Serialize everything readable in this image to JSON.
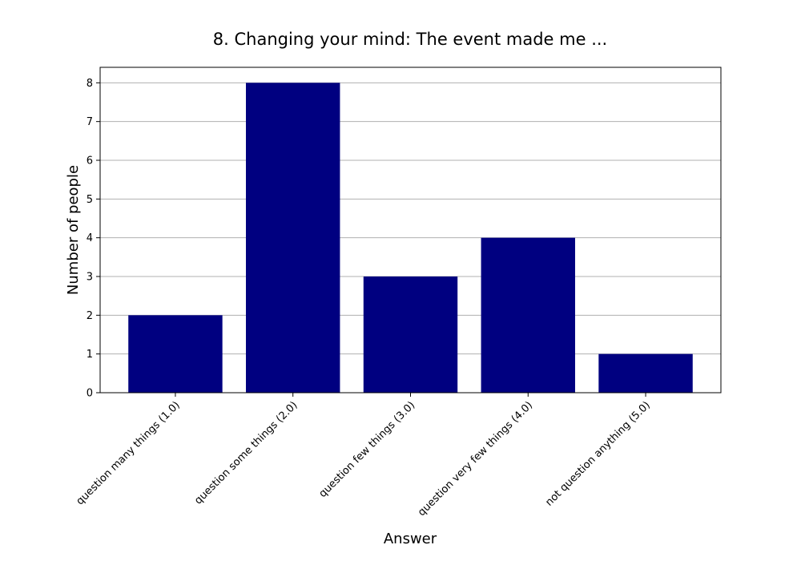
{
  "chart_data": {
    "type": "bar",
    "title": "8. Changing your mind: The event made me ...",
    "xlabel": "Answer",
    "ylabel": "Number of people",
    "categories": [
      "question many things (1.0)",
      "question some things (2.0)",
      "question few things (3.0)",
      "question very few things (4.0)",
      "not question anything (5.0)"
    ],
    "values": [
      2,
      8,
      3,
      4,
      1
    ],
    "ylim": [
      0,
      8.4
    ],
    "yticks": [
      "0",
      "1",
      "2",
      "3",
      "4",
      "5",
      "6",
      "7",
      "8"
    ],
    "grid": "y-only",
    "bar_color": "#000080"
  }
}
